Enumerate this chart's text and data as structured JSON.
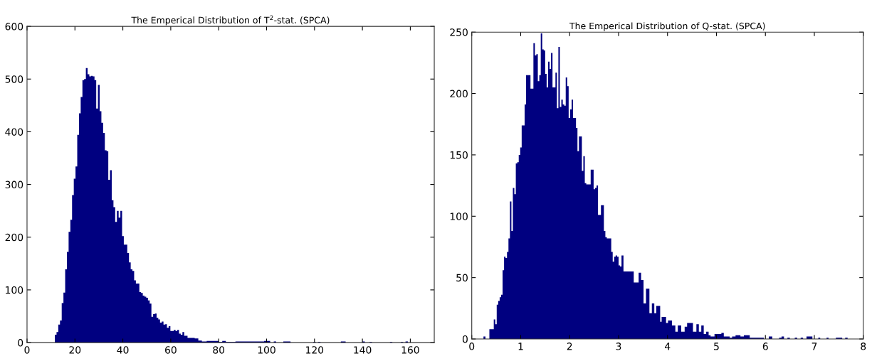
{
  "chart_data": [
    {
      "type": "histogram",
      "title": "The Emperical Distribution of T$^{2}$-stat. (SPCA)",
      "color": "#000080",
      "bins": [
        11.6,
        12.32,
        13.04,
        13.76,
        14.48,
        15.2,
        15.92,
        16.64,
        17.36,
        18.08,
        18.8,
        19.52,
        20.24,
        20.96,
        21.68,
        22.4,
        23.12,
        23.84,
        24.56,
        25.28,
        26,
        26.72,
        27.44,
        28.16,
        28.88,
        29.6,
        30.32,
        31.04,
        31.76,
        32.48,
        33.2,
        33.92,
        34.64,
        35.36,
        36.08,
        36.8,
        37.52,
        38.24,
        38.96,
        39.68,
        40.4,
        41.12,
        41.84,
        42.56,
        43.28,
        44,
        44.72,
        45.44,
        46.16,
        46.88,
        47.6,
        48.32,
        49.04,
        49.76,
        50.48,
        51.2,
        51.92,
        52.64,
        53.36,
        54.08,
        54.8,
        55.52,
        56.24,
        56.96,
        57.68,
        58.4,
        59.12,
        59.84,
        60.56,
        61.28,
        62,
        62.72,
        63.44,
        64.16,
        64.88,
        65.6,
        67,
        68.5,
        70,
        71.5,
        73,
        75,
        78,
        80,
        81.5,
        83,
        87,
        99,
        101.5,
        103,
        104,
        107,
        108,
        110,
        119.5,
        120.5,
        121.5,
        122.5,
        131,
        133,
        140,
        141,
        143,
        144,
        151.5,
        152.5,
        156,
        157,
        158,
        159
      ],
      "values": [
        15,
        20,
        34,
        42,
        75,
        95,
        139,
        172,
        210,
        233,
        280,
        311,
        334,
        394,
        435,
        466,
        498,
        500,
        521,
        509,
        505,
        506,
        505,
        498,
        444,
        489,
        439,
        417,
        398,
        365,
        363,
        309,
        327,
        270,
        257,
        229,
        250,
        237,
        250,
        202,
        186,
        186,
        170,
        152,
        139,
        136,
        118,
        112,
        112,
        96,
        94,
        89,
        87,
        85,
        80,
        74,
        49,
        54,
        55,
        47,
        44,
        38,
        40,
        34,
        35,
        28,
        31,
        22,
        22,
        24,
        22,
        24,
        17,
        15,
        20,
        13,
        9,
        9,
        8,
        4,
        2,
        3,
        3,
        1,
        3,
        1,
        2,
        3,
        0,
        2,
        0,
        2,
        2,
        0,
        1,
        0,
        1,
        0,
        2,
        0,
        2,
        0,
        1,
        0,
        1,
        0,
        1,
        0,
        2
      ],
      "xlim": [
        0,
        170
      ],
      "xticks": [
        0,
        20,
        40,
        60,
        80,
        100,
        120,
        140,
        160
      ],
      "ylim": [
        0,
        600
      ],
      "yticks": [
        0,
        100,
        200,
        300,
        400,
        500,
        600
      ]
    },
    {
      "type": "histogram",
      "title": "The Emperical Distribution of Q-stat. (SPCA)",
      "color": "#000080",
      "bins": [
        0.24,
        0.28,
        0.36,
        0.39,
        0.42,
        0.45,
        0.48,
        0.51,
        0.54,
        0.57,
        0.6,
        0.63,
        0.66,
        0.69,
        0.72,
        0.75,
        0.78,
        0.81,
        0.84,
        0.87,
        0.9,
        0.93,
        0.96,
        0.99,
        1.02,
        1.05,
        1.08,
        1.11,
        1.14,
        1.17,
        1.2,
        1.23,
        1.26,
        1.29,
        1.32,
        1.35,
        1.38,
        1.41,
        1.44,
        1.47,
        1.5,
        1.53,
        1.56,
        1.59,
        1.62,
        1.65,
        1.68,
        1.71,
        1.74,
        1.77,
        1.8,
        1.83,
        1.86,
        1.89,
        1.92,
        1.95,
        1.98,
        2.01,
        2.04,
        2.07,
        2.1,
        2.13,
        2.16,
        2.19,
        2.22,
        2.25,
        2.28,
        2.31,
        2.34,
        2.37,
        2.4,
        2.43,
        2.46,
        2.49,
        2.52,
        2.55,
        2.58,
        2.61,
        2.64,
        2.67,
        2.7,
        2.73,
        2.76,
        2.79,
        2.82,
        2.85,
        2.88,
        2.91,
        2.94,
        2.97,
        3.0,
        3.03,
        3.06,
        3.1,
        3.14,
        3.31,
        3.41,
        3.46,
        3.51,
        3.56,
        3.63,
        3.68,
        3.73,
        3.77,
        3.85,
        3.88,
        3.97,
        4.01,
        4.09,
        4.16,
        4.21,
        4.28,
        4.35,
        4.4,
        4.52,
        4.59,
        4.64,
        4.69,
        4.74,
        4.79,
        4.84,
        4.88,
        4.96,
        5.1,
        5.15,
        5.27,
        5.32,
        5.39,
        5.49,
        5.56,
        5.68,
        5.75,
        5.85,
        5.97,
        6.07,
        6.14,
        6.28,
        6.33,
        6.38,
        6.45,
        6.5,
        6.6,
        6.65,
        6.72,
        6.77,
        6.84,
        6.96,
        7.08,
        7.12,
        7.25,
        7.29,
        7.44,
        7.57,
        7.63,
        7.68
      ],
      "values": [
        2,
        0,
        8,
        8,
        8,
        16,
        12,
        28,
        31,
        34,
        36,
        56,
        67,
        66,
        71,
        82,
        112,
        88,
        123,
        118,
        143,
        144,
        150,
        156,
        174,
        174,
        191,
        215,
        215,
        215,
        204,
        204,
        241,
        231,
        232,
        210,
        215,
        249,
        236,
        235,
        216,
        205,
        226,
        220,
        233,
        205,
        205,
        217,
        188,
        238,
        189,
        195,
        191,
        190,
        213,
        206,
        180,
        187,
        195,
        180,
        180,
        172,
        153,
        165,
        165,
        137,
        149,
        127,
        126,
        126,
        126,
        138,
        138,
        122,
        123,
        125,
        101,
        101,
        109,
        109,
        88,
        83,
        82,
        82,
        82,
        71,
        63,
        67,
        68,
        67,
        60,
        59,
        68,
        55,
        55,
        46,
        54,
        48,
        29,
        41,
        21,
        29,
        21,
        27,
        14,
        18,
        13,
        15,
        11,
        6,
        11,
        6,
        10,
        13,
        6,
        12,
        6,
        11,
        4,
        6,
        3,
        2,
        4,
        5,
        2,
        1,
        2,
        3,
        2,
        3,
        1,
        1,
        1,
        0,
        2,
        0,
        1,
        2,
        0,
        1,
        0,
        1,
        0,
        1,
        0,
        2,
        0,
        1,
        0,
        1,
        0,
        1,
        0,
        1
      ],
      "xlim": [
        0,
        8
      ],
      "xticks": [
        0,
        1,
        2,
        3,
        4,
        5,
        6,
        7,
        8
      ],
      "ylim": [
        0,
        250
      ],
      "yticks": [
        0,
        50,
        100,
        150,
        200,
        250
      ]
    }
  ]
}
